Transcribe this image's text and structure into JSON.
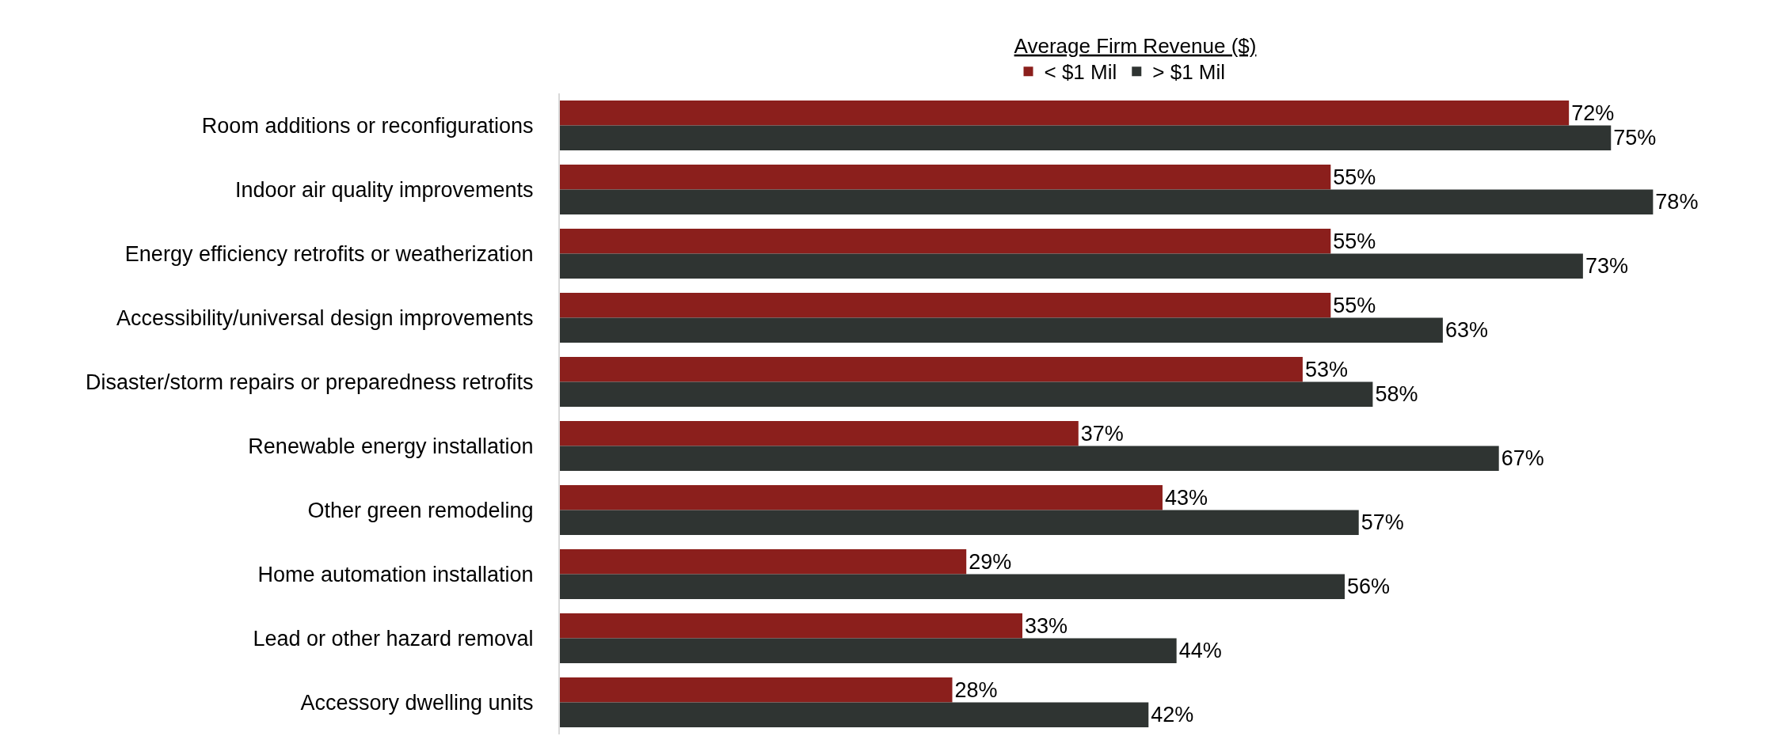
{
  "chart_data": {
    "type": "bar",
    "orientation": "horizontal",
    "legend_title": "Average Firm Revenue ($)",
    "legend": "top",
    "tick_labels": "y",
    "categories": [
      "Room additions or reconfigurations",
      "Indoor air quality improvements",
      "Energy efficiency retrofits or weatherization",
      "Accessibility/universal design improvements",
      "Disaster/storm repairs or preparedness retrofits",
      "Renewable energy installation",
      "Other green remodeling",
      "Home automation installation",
      "Lead or other hazard removal",
      "Accessory dwelling units"
    ],
    "series": [
      {
        "name": "< $1 Mil",
        "color": "#8b1f1c",
        "values": [
          72,
          55,
          55,
          55,
          53,
          37,
          43,
          29,
          33,
          28
        ],
        "value_labels": [
          "72%",
          "55%",
          "55%",
          "55%",
          "53%",
          "37%",
          "43%",
          "29%",
          "33%",
          "28%"
        ]
      },
      {
        "name": "> $1 Mil",
        "color": "#2f3432",
        "values": [
          75,
          78,
          73,
          63,
          58,
          67,
          57,
          56,
          44,
          42
        ],
        "value_labels": [
          "75%",
          "78%",
          "73%",
          "63%",
          "58%",
          "67%",
          "57%",
          "56%",
          "44%",
          "42%"
        ]
      }
    ]
  }
}
